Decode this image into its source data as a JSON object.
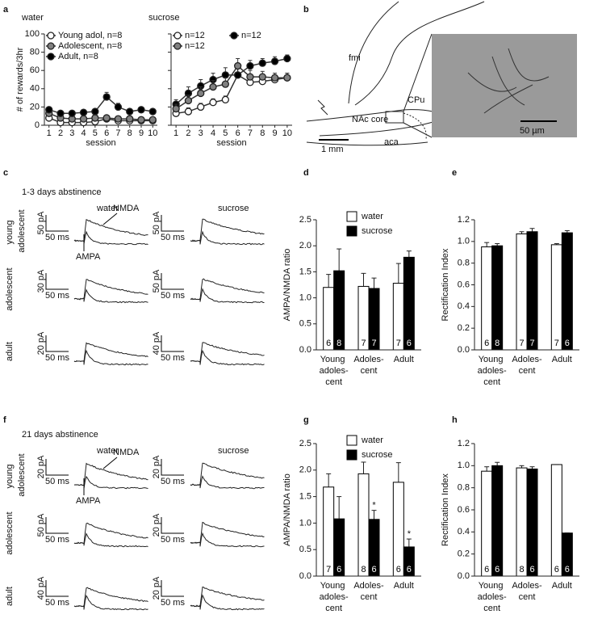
{
  "panel_labels": [
    "a",
    "b",
    "c",
    "d",
    "e",
    "f",
    "g",
    "h"
  ],
  "diagram": {
    "labels": [
      "fmi",
      "CPu",
      "NAc core",
      "aca",
      "1 mm",
      "50 µm"
    ]
  },
  "traces": {
    "c": {
      "title": "1-3 days abstinence",
      "columns": [
        "water",
        "sucrose"
      ],
      "rows": [
        "young adolescent",
        "adolescent",
        "adult"
      ],
      "scale_bars": [
        [
          [
            "50 pA",
            "50 ms"
          ],
          [
            "50 pA",
            "50 ms"
          ]
        ],
        [
          [
            "30 pA",
            "50 ms"
          ],
          [
            "50 pA",
            "50 ms"
          ]
        ],
        [
          [
            "20 pA",
            "50 ms"
          ],
          [
            "40 pA",
            "50 ms"
          ]
        ]
      ],
      "annotations": [
        "NMDA",
        "AMPA"
      ]
    },
    "f": {
      "title": "21 days abstinence",
      "columns": [
        "water",
        "sucrose"
      ],
      "rows": [
        "young adolescent",
        "adolescent",
        "adult"
      ],
      "scale_bars": [
        [
          [
            "20 pA",
            "50 ms"
          ],
          [
            "20 pA",
            "50 ms"
          ]
        ],
        [
          [
            "50 pA",
            "50 ms"
          ],
          [
            "20 pA",
            "50 ms"
          ]
        ],
        [
          [
            "40 pA",
            "50 ms"
          ],
          [
            "20 pA",
            "50 ms"
          ]
        ]
      ],
      "annotations": [
        "NMDA",
        "AMPA"
      ]
    }
  },
  "chart_data": [
    {
      "type": "line",
      "title": "water",
      "ylabel": "# of rewards/3hr",
      "xlabel": "session",
      "x": [
        1,
        2,
        3,
        4,
        5,
        6,
        7,
        8,
        9,
        10
      ],
      "xlim": [
        0.6,
        10.4
      ],
      "xticks": [
        1,
        2,
        3,
        4,
        5,
        6,
        7,
        8,
        9,
        10
      ],
      "ylim": [
        0,
        100
      ],
      "yticks": [
        0,
        20,
        40,
        60,
        80,
        100
      ],
      "ytick_labels": true,
      "legend_columns": 1,
      "line_color": "#333333",
      "series": [
        {
          "name": "Young adol, n=8",
          "color": "#ffffff",
          "values": [
            8,
            3,
            3,
            3,
            4,
            7,
            5,
            5,
            5,
            5
          ],
          "errors": [
            2,
            1,
            1,
            1,
            1,
            2,
            1,
            1,
            1,
            1
          ]
        },
        {
          "name": "Adolescent, n=8",
          "color": "#808080",
          "values": [
            13,
            8,
            7,
            7,
            8,
            8,
            7,
            7,
            6,
            6
          ],
          "errors": [
            2,
            2,
            1,
            1,
            2,
            2,
            1,
            1,
            1,
            1
          ]
        },
        {
          "name": "Adult, n=8",
          "color": "#000000",
          "values": [
            17,
            13,
            13,
            14,
            15,
            31,
            20,
            15,
            17,
            15
          ],
          "errors": [
            3,
            2,
            2,
            2,
            2,
            5,
            4,
            2,
            2,
            2
          ]
        }
      ]
    },
    {
      "type": "line",
      "title": "sucrose",
      "xlabel": "session",
      "x": [
        1,
        2,
        3,
        4,
        5,
        6,
        7,
        8,
        9,
        10
      ],
      "xlim": [
        0.6,
        10.4
      ],
      "xticks": [
        1,
        2,
        3,
        4,
        5,
        6,
        7,
        8,
        9,
        10
      ],
      "ylim": [
        0,
        100
      ],
      "yticks": [
        0,
        20,
        40,
        60,
        80,
        100
      ],
      "ytick_labels": false,
      "legend_columns": 2,
      "line_color": "#333333",
      "series": [
        {
          "name": "n=12",
          "color": "#ffffff",
          "values": [
            13,
            15,
            20,
            25,
            28,
            55,
            47,
            48,
            50,
            52
          ],
          "errors": [
            3,
            4,
            4,
            4,
            4,
            8,
            5,
            5,
            5,
            5
          ]
        },
        {
          "name": "n=12",
          "color": "#000000",
          "values": [
            23,
            35,
            43,
            50,
            55,
            55,
            65,
            68,
            70,
            73
          ],
          "errors": [
            5,
            7,
            7,
            7,
            8,
            8,
            6,
            5,
            5,
            4
          ]
        },
        {
          "name": "n=12",
          "color": "#808080",
          "values": [
            18,
            27,
            35,
            42,
            45,
            65,
            53,
            53,
            52,
            52
          ],
          "errors": [
            5,
            6,
            7,
            7,
            7,
            8,
            7,
            6,
            5,
            5
          ]
        }
      ]
    },
    {
      "type": "bar",
      "ylabel": "AMPA/NMDA ratio",
      "legend": true,
      "categories": [
        "Young adoles-cent",
        "Adoles-cent",
        "Adult"
      ],
      "ylim": [
        0,
        2.5
      ],
      "yticks": [
        {
          "value": 0,
          "label": "0.0"
        },
        0.5,
        {
          "value": 1,
          "label": "1.0"
        },
        1.5,
        {
          "value": 2,
          "label": "2.0"
        },
        2.5
      ],
      "series": [
        {
          "name": "water",
          "color": "#ffffff",
          "label_color": "#000000",
          "values": [
            1.2,
            1.22,
            1.28
          ],
          "errors": [
            0.25,
            0.25,
            0.38
          ],
          "n": [
            6,
            7,
            7
          ]
        },
        {
          "name": "sucrose",
          "color": "#000000",
          "label_color": "#ffffff",
          "values": [
            1.52,
            1.18,
            1.78
          ],
          "errors": [
            0.42,
            0.2,
            0.12
          ],
          "n": [
            8,
            7,
            6
          ]
        }
      ]
    },
    {
      "type": "bar",
      "ylabel": "Rectification Index",
      "legend": false,
      "categories": [
        "Young adoles-cent",
        "Adoles-cent",
        "Adult"
      ],
      "ylim": [
        0,
        1.2
      ],
      "yticks": [
        {
          "value": 0,
          "label": "0.0"
        },
        0.2,
        0.4,
        0.6,
        0.8,
        {
          "value": 1,
          "label": "1.0"
        },
        1.2
      ],
      "series": [
        {
          "name": "water",
          "color": "#ffffff",
          "label_color": "#000000",
          "values": [
            0.95,
            1.07,
            0.97
          ],
          "errors": [
            0.04,
            0.02,
            0.01
          ],
          "n": [
            6,
            7,
            7
          ]
        },
        {
          "name": "sucrose",
          "color": "#000000",
          "label_color": "#ffffff",
          "values": [
            0.96,
            1.09,
            1.08
          ],
          "errors": [
            0.02,
            0.03,
            0.02
          ],
          "n": [
            8,
            7,
            6
          ]
        }
      ]
    },
    {
      "type": "bar",
      "ylabel": "AMPA/NMDA ratio",
      "legend": true,
      "categories": [
        "Young adoles-cent",
        "Adoles-cent",
        "Adult"
      ],
      "ylim": [
        0,
        2.5
      ],
      "yticks": [
        {
          "value": 0,
          "label": "0.0"
        },
        0.5,
        {
          "value": 1,
          "label": "1.0"
        },
        1.5,
        {
          "value": 2,
          "label": "2.0"
        },
        2.5
      ],
      "series": [
        {
          "name": "water",
          "color": "#ffffff",
          "label_color": "#000000",
          "values": [
            1.68,
            1.93,
            1.77
          ],
          "errors": [
            0.25,
            0.22,
            0.37
          ],
          "n": [
            7,
            8,
            6
          ]
        },
        {
          "name": "sucrose",
          "color": "#000000",
          "label_color": "#ffffff",
          "values": [
            1.08,
            1.07,
            0.55
          ],
          "errors": [
            0.42,
            0.17,
            0.15
          ],
          "n": [
            6,
            6,
            6
          ],
          "annotations": [
            null,
            "*",
            "*"
          ]
        }
      ]
    },
    {
      "type": "bar",
      "ylabel": "Rectification Index",
      "legend": false,
      "categories": [
        "Young adoles-cent",
        "Adoles-cent",
        "Adult"
      ],
      "ylim": [
        0,
        1.2
      ],
      "yticks": [
        {
          "value": 0,
          "label": "0.0"
        },
        0.2,
        0.4,
        0.6,
        0.8,
        {
          "value": 1,
          "label": "1.0"
        },
        1.2
      ],
      "series": [
        {
          "name": "water",
          "color": "#ffffff",
          "label_color": "#000000",
          "values": [
            0.95,
            0.98,
            1.01
          ],
          "errors": [
            0.04,
            0.02,
            0
          ],
          "n": [
            6,
            8,
            6
          ]
        },
        {
          "name": "sucrose",
          "color": "#000000",
          "label_color": "#ffffff",
          "values": [
            1.0,
            0.97,
            0.39
          ],
          "errors": [
            0.03,
            0.02,
            0
          ],
          "n": [
            6,
            6,
            6
          ]
        }
      ]
    }
  ]
}
